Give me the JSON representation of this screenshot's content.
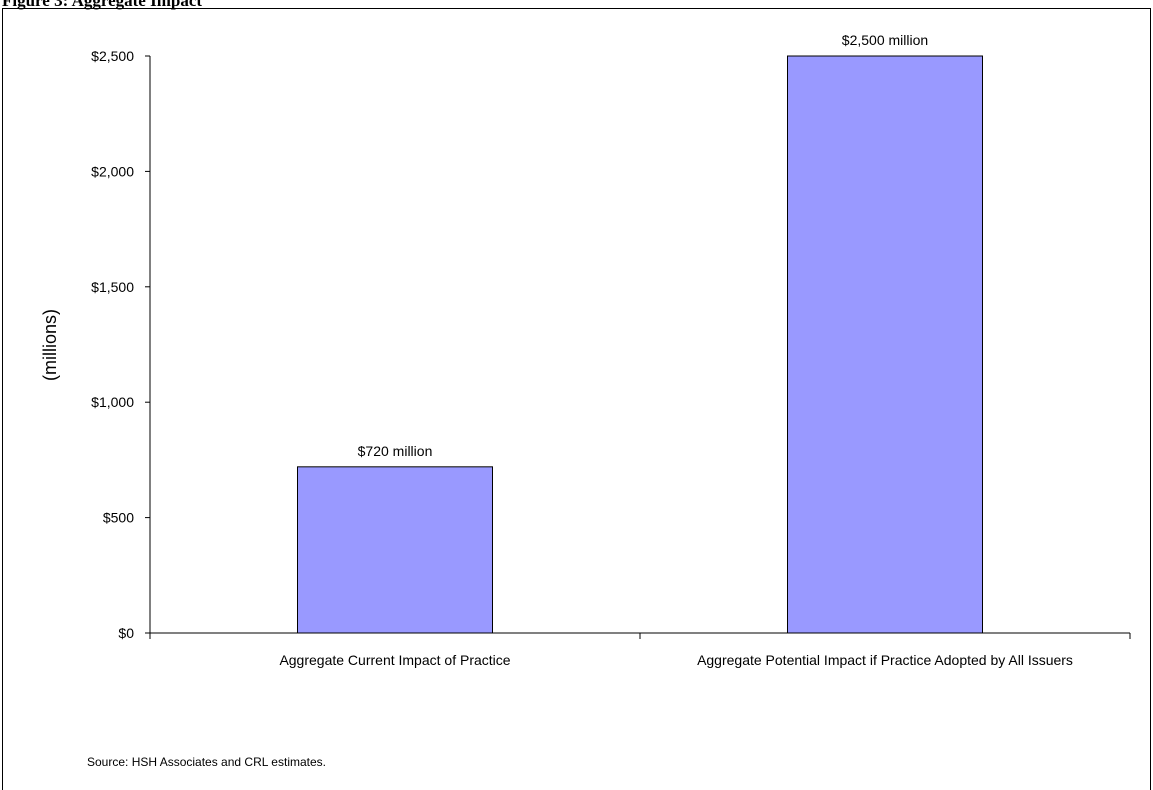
{
  "page": {
    "title": "Figure 3: Aggregate Impact",
    "source": "Source:  HSH Associates and CRL estimates."
  },
  "colors": {
    "bar_fill": "#9999FF",
    "bar_stroke": "#000000",
    "axis": "#000000"
  },
  "chart_data": {
    "type": "bar",
    "title": "",
    "xlabel": "",
    "ylabel": "(millions)",
    "categories": [
      "Aggregate Current Impact of Practice",
      "Aggregate Potential Impact if Practice Adopted by All Issuers"
    ],
    "values": [
      720,
      2500
    ],
    "data_labels": [
      "$720 million",
      "$2,500 million"
    ],
    "ylim": [
      0,
      2500
    ],
    "yticks": [
      0,
      500,
      1000,
      1500,
      2000,
      2500
    ],
    "ytick_labels": [
      "$0",
      "$500",
      "$1,000",
      "$1,500",
      "$2,000",
      "$2,500"
    ],
    "grid": false,
    "legend": "none"
  }
}
